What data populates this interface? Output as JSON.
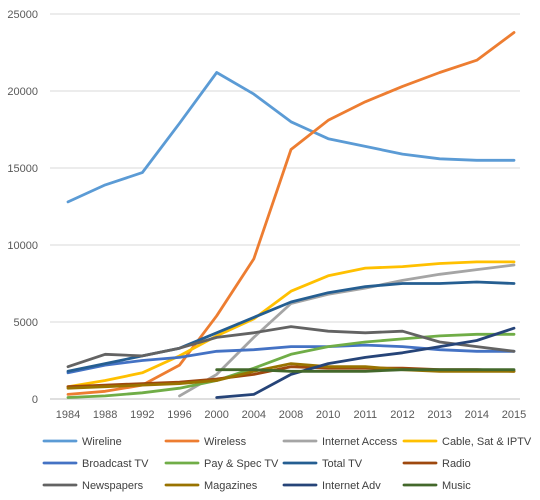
{
  "chart_data": {
    "type": "line",
    "title": "",
    "xlabel": "",
    "ylabel": "",
    "categories": [
      "1984",
      "1988",
      "1992",
      "1996",
      "2000",
      "2004",
      "2008",
      "2010",
      "2011",
      "2012",
      "2013",
      "2014",
      "2015"
    ],
    "ylim": [
      0,
      25000
    ],
    "yticks": [
      "0",
      "5000",
      "10000",
      "15000",
      "20000",
      "25000"
    ],
    "grid": true,
    "legend_position": "bottom",
    "series": [
      {
        "name": "Wireline",
        "color": "#5b9bd5",
        "values": [
          12800,
          13900,
          14700,
          17900,
          21200,
          19800,
          18000,
          16900,
          16400,
          15900,
          15600,
          15500,
          15500
        ]
      },
      {
        "name": "Wireless",
        "color": "#ed7d31",
        "values": [
          300,
          500,
          900,
          2200,
          5400,
          9100,
          16200,
          18100,
          19300,
          20300,
          21200,
          22000,
          23800
        ]
      },
      {
        "name": "Internet Access",
        "color": "#a5a5a5",
        "values": [
          null,
          null,
          null,
          200,
          1600,
          4000,
          6200,
          6800,
          7200,
          7700,
          8100,
          8400,
          8700
        ]
      },
      {
        "name": "Cable, Sat & IPTV",
        "color": "#ffc000",
        "values": [
          800,
          1200,
          1700,
          2800,
          4100,
          5200,
          7000,
          8000,
          8500,
          8600,
          8800,
          8900,
          8900
        ]
      },
      {
        "name": "Broadcast TV",
        "color": "#4472c4",
        "values": [
          1700,
          2200,
          2500,
          2700,
          3100,
          3200,
          3400,
          3400,
          3500,
          3400,
          3200,
          3100,
          3100
        ]
      },
      {
        "name": "Pay & Spec TV",
        "color": "#70ad47",
        "values": [
          100,
          200,
          400,
          700,
          1200,
          2000,
          2900,
          3400,
          3700,
          3900,
          4100,
          4200,
          4200
        ]
      },
      {
        "name": "Total TV",
        "color": "#255e91",
        "values": [
          1800,
          2300,
          2800,
          3300,
          4300,
          5300,
          6300,
          6900,
          7300,
          7500,
          7500,
          7600,
          7500
        ]
      },
      {
        "name": "Radio",
        "color": "#9e480e",
        "values": [
          800,
          900,
          1000,
          1100,
          1300,
          1600,
          2100,
          2000,
          2000,
          2000,
          1900,
          1900,
          1800
        ]
      },
      {
        "name": "Newspapers",
        "color": "#636363",
        "values": [
          2100,
          2900,
          2800,
          3300,
          4000,
          4300,
          4700,
          4400,
          4300,
          4400,
          3700,
          3400,
          3100
        ]
      },
      {
        "name": "Magazines",
        "color": "#997300",
        "values": [
          700,
          800,
          900,
          1000,
          1200,
          1800,
          2300,
          2100,
          2100,
          1900,
          1800,
          1800,
          1800
        ]
      },
      {
        "name": "Internet Adv",
        "color": "#264478",
        "values": [
          null,
          null,
          null,
          null,
          100,
          300,
          1600,
          2300,
          2700,
          3000,
          3400,
          3800,
          4600
        ]
      },
      {
        "name": "Music",
        "color": "#43682b",
        "values": [
          null,
          null,
          null,
          null,
          1900,
          1900,
          1800,
          1800,
          1800,
          1900,
          1900,
          1900,
          1900
        ]
      }
    ]
  }
}
